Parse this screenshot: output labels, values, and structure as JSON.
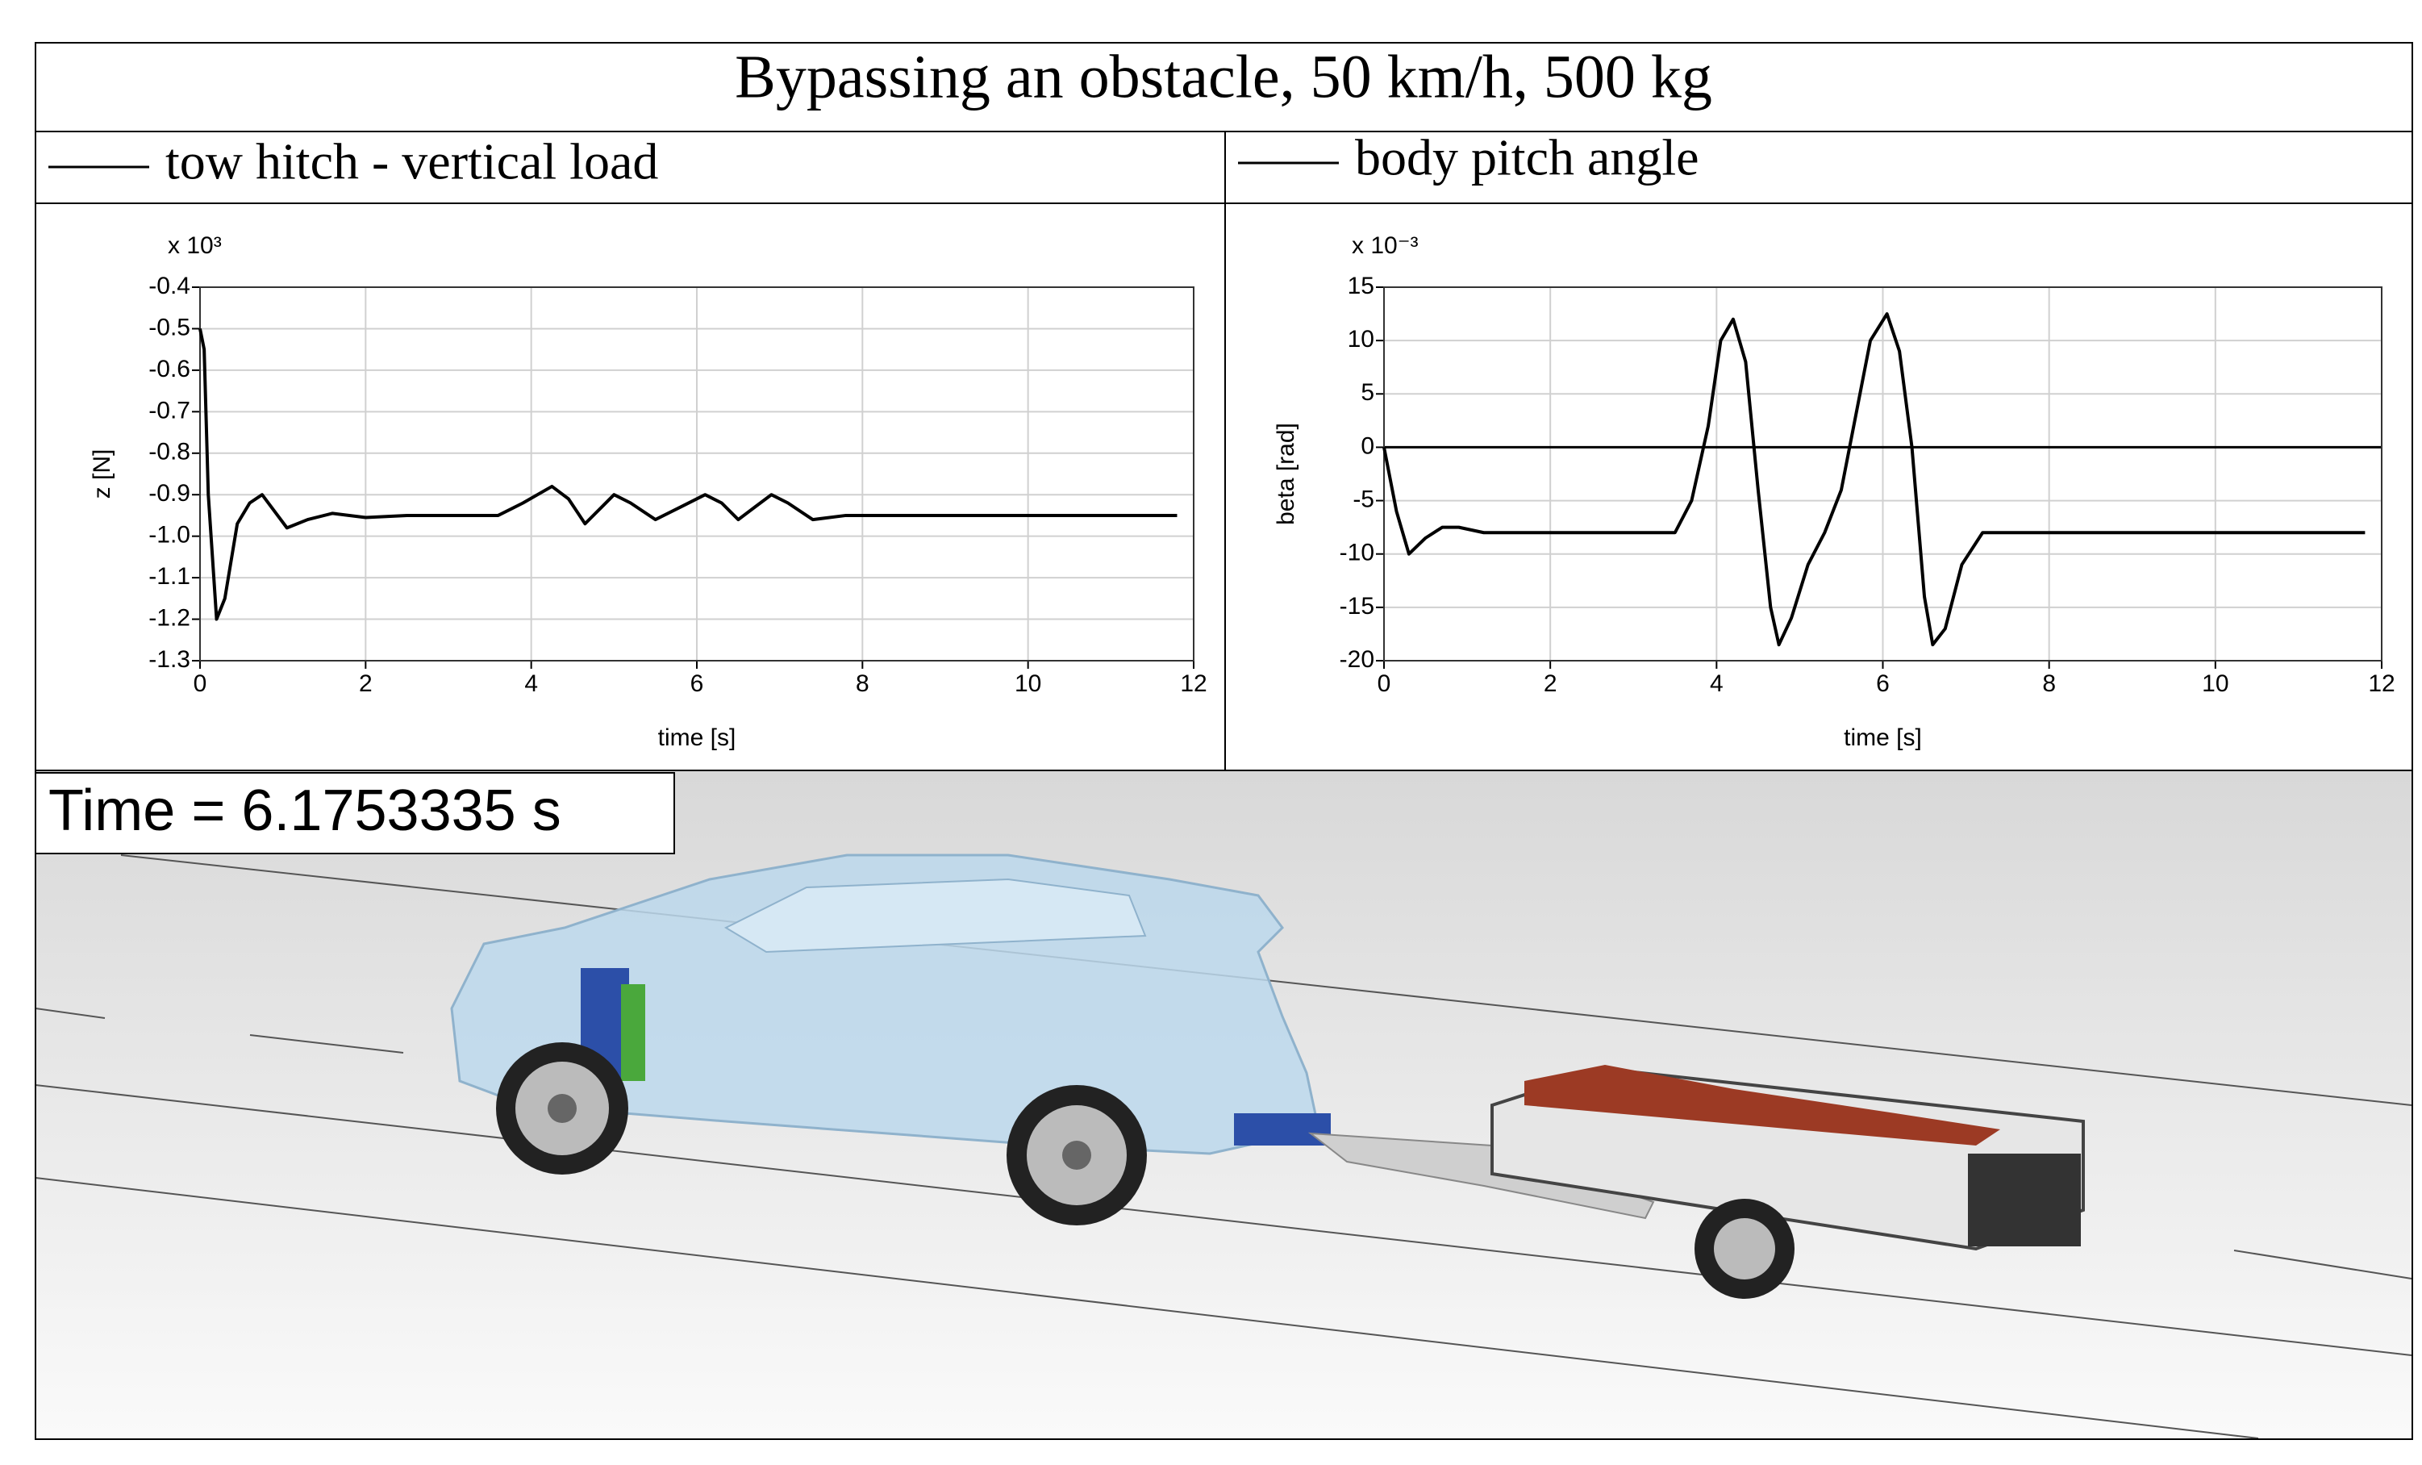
{
  "header": {
    "title": "Bypassing an obstacle, 50 km/h, 500 kg"
  },
  "chart_data": [
    {
      "type": "line",
      "y_multiplier": "x 10³",
      "ylabel": "z [N]",
      "xlabel": "time [s]",
      "xlim": [
        0,
        12
      ],
      "xticks": [
        0,
        2,
        4,
        6,
        8,
        10,
        12
      ],
      "ylim": [
        -1.3,
        -0.4
      ],
      "yticks": [
        -0.4,
        -0.5,
        -0.6,
        -0.7,
        -0.8,
        -0.9,
        {
          "value": -1,
          "label": "-1.0"
        },
        -1.1,
        -1.2,
        -1.3
      ],
      "grid": true,
      "x": [
        0,
        0.05,
        0.1,
        0.2,
        0.3,
        0.45,
        0.6,
        0.75,
        0.9,
        1.05,
        1.3,
        1.6,
        2.0,
        2.5,
        3.0,
        3.6,
        3.9,
        4.25,
        4.45,
        4.65,
        4.85,
        5.0,
        5.2,
        5.5,
        5.8,
        6.1,
        6.3,
        6.5,
        6.7,
        6.9,
        7.1,
        7.4,
        7.8,
        9.0,
        10.5,
        11.8
      ],
      "series": [
        {
          "name": "tow hitch - vertical load",
          "color": "#000000",
          "values": [
            -0.5,
            -0.55,
            -0.9,
            -1.2,
            -1.15,
            -0.97,
            -0.92,
            -0.9,
            -0.94,
            -0.98,
            -0.96,
            -0.945,
            -0.955,
            -0.95,
            -0.95,
            -0.95,
            -0.92,
            -0.88,
            -0.91,
            -0.97,
            -0.93,
            -0.9,
            -0.92,
            -0.96,
            -0.93,
            -0.9,
            -0.92,
            -0.96,
            -0.93,
            -0.9,
            -0.92,
            -0.96,
            -0.95,
            -0.95,
            -0.95,
            -0.95
          ]
        }
      ]
    },
    {
      "type": "line",
      "y_multiplier": "x 10⁻³",
      "ylabel": "beta [rad]",
      "xlabel": "time [s]",
      "xlim": [
        0,
        12
      ],
      "xticks": [
        0,
        2,
        4,
        6,
        8,
        10,
        12
      ],
      "ylim": [
        -20,
        15
      ],
      "yticks": [
        15,
        10,
        5,
        0,
        -5,
        -10,
        -15,
        -20
      ],
      "grid": true,
      "zero_line": true,
      "x": [
        0,
        0.15,
        0.3,
        0.5,
        0.7,
        0.9,
        1.2,
        1.5,
        2.5,
        3.5,
        3.7,
        3.9,
        4.05,
        4.2,
        4.35,
        4.5,
        4.65,
        4.75,
        4.9,
        5.1,
        5.3,
        5.5,
        5.7,
        5.85,
        6.05,
        6.2,
        6.35,
        6.5,
        6.6,
        6.75,
        6.95,
        7.2,
        7.6,
        9.0,
        10.5,
        11.8
      ],
      "series": [
        {
          "name": "body pitch angle",
          "color": "#000000",
          "values": [
            0,
            -6,
            -10,
            -8.5,
            -7.5,
            -7.5,
            -8,
            -8,
            -8,
            -8,
            -5,
            2,
            10,
            12,
            8,
            -4,
            -15,
            -18.5,
            -16,
            -11,
            -8,
            -4,
            4,
            10,
            12.5,
            9,
            0,
            -14,
            -18.5,
            -17,
            -11,
            -8,
            -8,
            -8,
            -8,
            -8
          ]
        }
      ]
    }
  ],
  "viewport": {
    "time_label": "Time = 6.1753335 s"
  }
}
